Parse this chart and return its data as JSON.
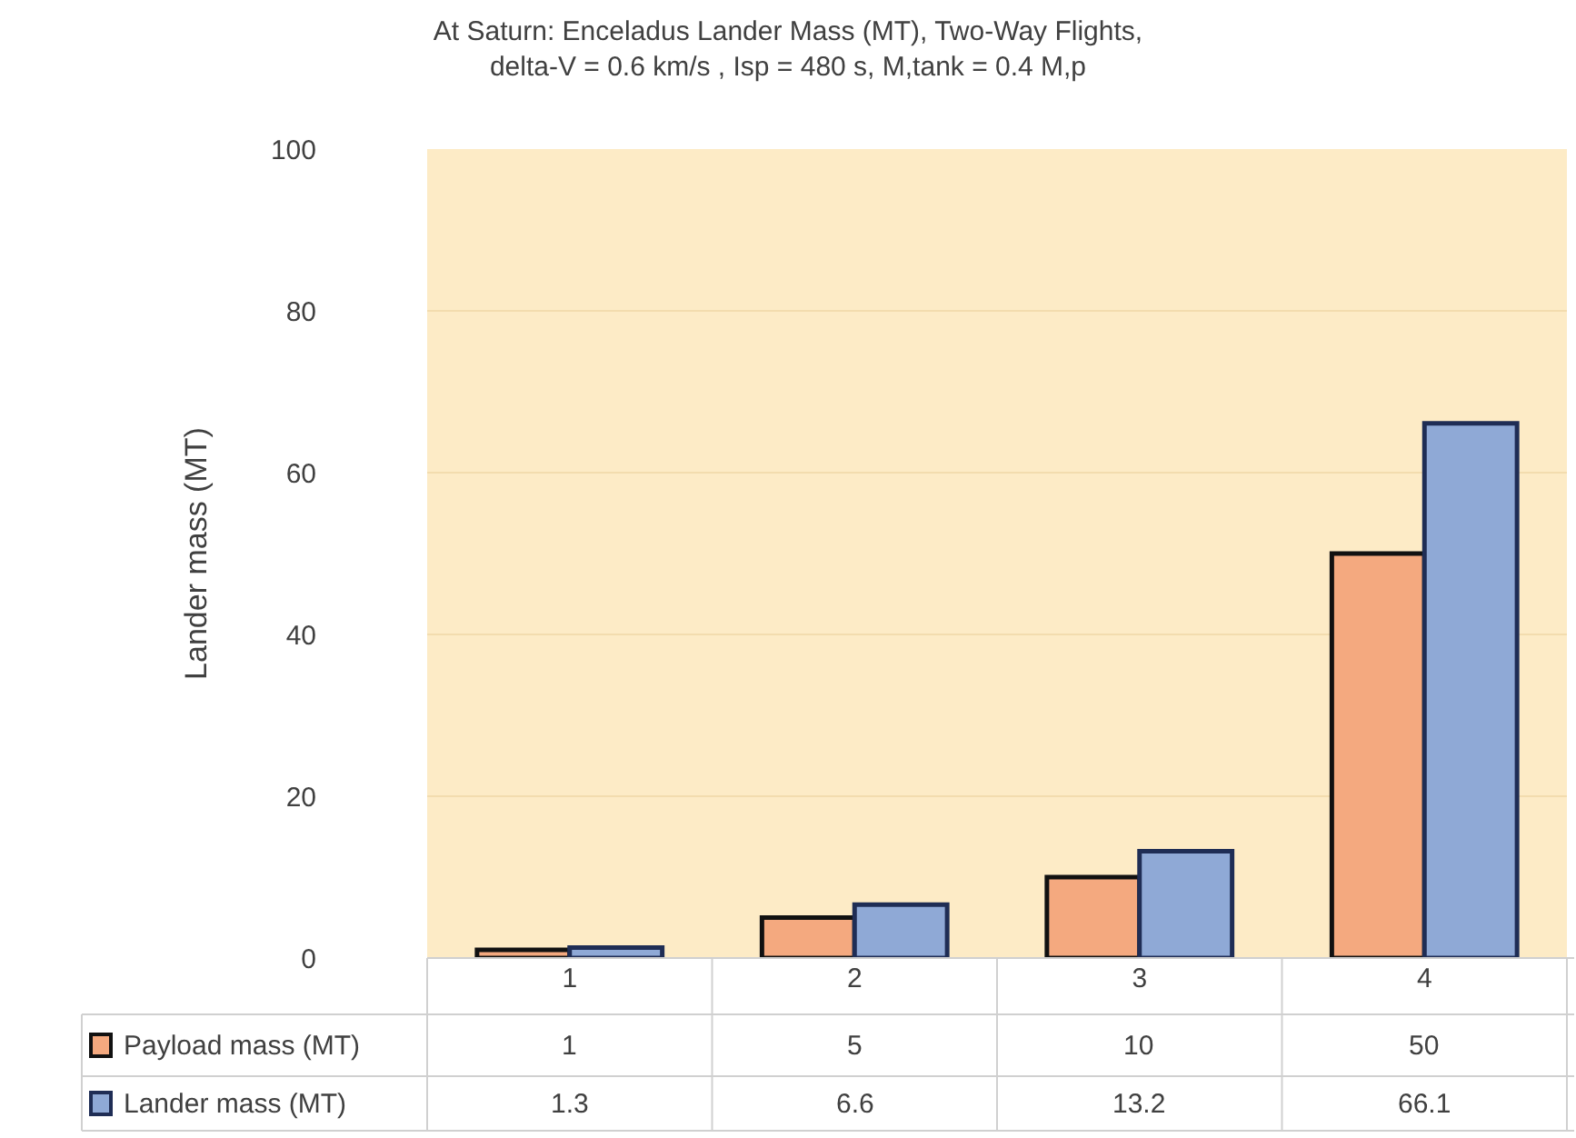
{
  "chart_data": {
    "type": "bar",
    "title": "At Saturn: Enceladus Lander Mass (MT), Two-Way Flights,\ndelta-V = 0.6 km/s , Isp = 480 s, M,tank = 0.4 M,p",
    "ylabel": "Lander mass (MT)",
    "categories": [
      "1",
      "2",
      "3",
      "4"
    ],
    "series": [
      {
        "name": "Payload mass (MT)",
        "color": "#f4a97f",
        "values": [
          1,
          5,
          10,
          50
        ]
      },
      {
        "name": "Lander mass (MT)",
        "color": "#8fa9d6",
        "values": [
          1.3,
          6.6,
          13.2,
          66.1
        ]
      }
    ],
    "ylim": [
      0,
      100
    ],
    "yticks": [
      0,
      20,
      40,
      60,
      80,
      100
    ],
    "grid": "y",
    "legend": "bottom left",
    "data_labels": true
  }
}
